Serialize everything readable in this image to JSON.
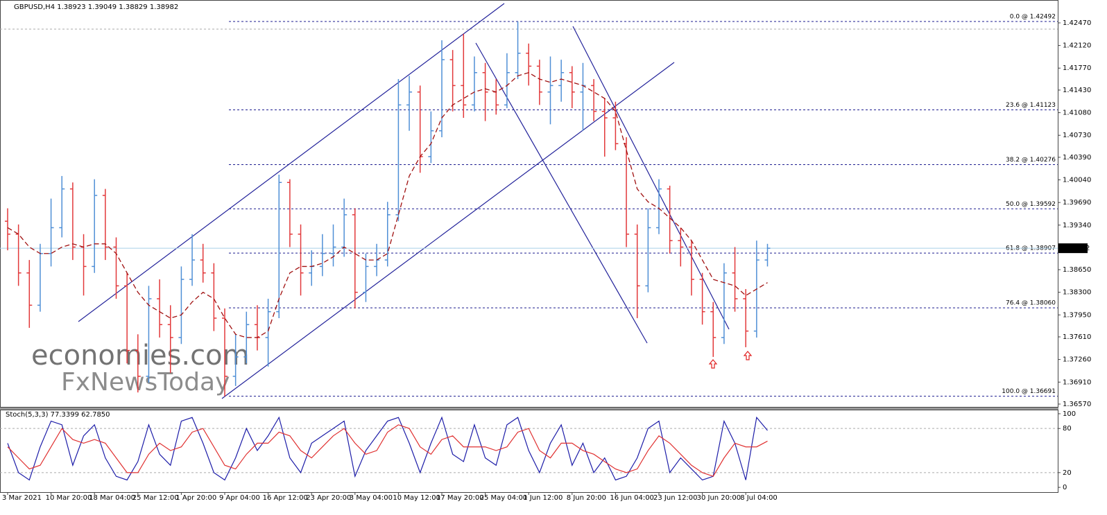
{
  "chart_data": [
    {
      "type": "ohlc",
      "title": "GBPUSD,H4  1.38923 1.39049 1.38829 1.38982",
      "categories": [
        "3 Mar 2021",
        null,
        null,
        null,
        "10 Mar 20:00",
        null,
        null,
        null,
        "18 Mar 04:00",
        null,
        null,
        null,
        "25 Mar 12:00",
        null,
        null,
        null,
        "1 Apr 20:00",
        null,
        null,
        null,
        "9 Apr 04:00",
        null,
        null,
        null,
        "16 Apr 12:00",
        null,
        null,
        null,
        "23 Apr 20:00",
        null,
        null,
        null,
        "3 May 04:00",
        null,
        null,
        null,
        "10 May 12:00",
        null,
        null,
        null,
        "17 May 20:00",
        null,
        null,
        null,
        "25 May 04:00",
        null,
        null,
        null,
        "1 Jun 12:00",
        null,
        null,
        null,
        "8 Jun 20:00",
        null,
        null,
        null,
        "16 Jun 04:00",
        null,
        null,
        null,
        "23 Jun 12:00",
        null,
        null,
        null,
        "30 Jun 20:00",
        null,
        null,
        null,
        "8 Jul 04:00",
        null,
        null
      ],
      "open": [
        1.394,
        1.392,
        1.386,
        1.381,
        1.389,
        1.393,
        1.399,
        1.39,
        1.387,
        1.398,
        1.39,
        1.384,
        1.374,
        1.37,
        1.382,
        1.378,
        1.376,
        1.385,
        1.388,
        1.386,
        1.379,
        1.37,
        1.373,
        1.378,
        1.376,
        1.38,
        1.4,
        1.392,
        1.386,
        1.387,
        1.389,
        1.39,
        1.395,
        1.383,
        1.387,
        1.388,
        1.395,
        1.412,
        1.414,
        1.404,
        1.408,
        1.419,
        1.415,
        1.412,
        1.417,
        1.414,
        1.412,
        1.417,
        1.42,
        1.418,
        1.414,
        1.415,
        1.417,
        1.414,
        1.415,
        1.411,
        1.41,
        1.406,
        1.392,
        1.384,
        1.393,
        1.399,
        1.391,
        1.39,
        1.385,
        1.38,
        1.376,
        1.386,
        1.382,
        1.377,
        1.388
      ],
      "high": [
        1.396,
        1.3935,
        1.388,
        1.3905,
        1.3975,
        1.401,
        1.4,
        1.392,
        1.4005,
        1.399,
        1.3915,
        1.386,
        1.3765,
        1.384,
        1.385,
        1.381,
        1.387,
        1.392,
        1.3905,
        1.3875,
        1.3805,
        1.3765,
        1.38,
        1.381,
        1.382,
        1.4012,
        1.4005,
        1.3935,
        1.3895,
        1.392,
        1.3935,
        1.3975,
        1.396,
        1.389,
        1.3905,
        1.397,
        1.416,
        1.4165,
        1.415,
        1.411,
        1.422,
        1.4205,
        1.423,
        1.4195,
        1.4185,
        1.416,
        1.42,
        1.4249,
        1.4215,
        1.419,
        1.4195,
        1.419,
        1.418,
        1.4185,
        1.416,
        1.413,
        1.4125,
        1.407,
        1.3935,
        1.396,
        1.4005,
        1.3995,
        1.393,
        1.391,
        1.386,
        1.3815,
        1.3875,
        1.39,
        1.3835,
        1.391,
        1.3905
      ],
      "low": [
        1.3895,
        1.384,
        1.3775,
        1.38,
        1.387,
        1.3915,
        1.388,
        1.3825,
        1.386,
        1.388,
        1.382,
        1.372,
        1.3675,
        1.369,
        1.376,
        1.3705,
        1.375,
        1.384,
        1.3845,
        1.377,
        1.3669,
        1.3685,
        1.372,
        1.374,
        1.3715,
        1.379,
        1.39,
        1.3825,
        1.384,
        1.3855,
        1.387,
        1.3885,
        1.3805,
        1.3815,
        1.3855,
        1.387,
        1.394,
        1.408,
        1.4015,
        1.403,
        1.407,
        1.411,
        1.41,
        1.411,
        1.4095,
        1.4105,
        1.4115,
        1.416,
        1.415,
        1.412,
        1.409,
        1.4125,
        1.4115,
        1.408,
        1.4095,
        1.404,
        1.405,
        1.39,
        1.379,
        1.383,
        1.392,
        1.389,
        1.387,
        1.3825,
        1.378,
        1.373,
        1.375,
        1.38,
        1.3745,
        1.376,
        1.387
      ],
      "close": [
        1.392,
        1.386,
        1.381,
        1.389,
        1.393,
        1.399,
        1.39,
        1.387,
        1.398,
        1.39,
        1.384,
        1.374,
        1.37,
        1.382,
        1.378,
        1.376,
        1.385,
        1.388,
        1.386,
        1.379,
        1.37,
        1.373,
        1.378,
        1.376,
        1.38,
        1.4,
        1.392,
        1.386,
        1.387,
        1.389,
        1.39,
        1.395,
        1.383,
        1.387,
        1.388,
        1.395,
        1.412,
        1.414,
        1.404,
        1.408,
        1.419,
        1.415,
        1.412,
        1.417,
        1.414,
        1.412,
        1.417,
        1.42,
        1.418,
        1.414,
        1.415,
        1.417,
        1.414,
        1.415,
        1.411,
        1.41,
        1.406,
        1.392,
        1.384,
        1.393,
        1.399,
        1.391,
        1.39,
        1.385,
        1.38,
        1.376,
        1.386,
        1.382,
        1.377,
        1.388,
        1.38982
      ],
      "up_color": "#4f8fd6",
      "down_color": "#e2383a",
      "ma": {
        "color": "#a01010",
        "values": [
          1.393,
          1.392,
          1.39,
          1.389,
          1.389,
          1.39,
          1.3905,
          1.39,
          1.3905,
          1.3905,
          1.389,
          1.386,
          1.383,
          1.381,
          1.38,
          1.379,
          1.3795,
          1.3815,
          1.383,
          1.382,
          1.379,
          1.3765,
          1.376,
          1.376,
          1.377,
          1.382,
          1.386,
          1.387,
          1.387,
          1.3875,
          1.3885,
          1.39,
          1.389,
          1.388,
          1.388,
          1.389,
          1.395,
          1.401,
          1.404,
          1.406,
          1.41,
          1.412,
          1.413,
          1.414,
          1.4145,
          1.414,
          1.415,
          1.4165,
          1.417,
          1.416,
          1.4155,
          1.416,
          1.4155,
          1.415,
          1.414,
          1.413,
          1.411,
          1.405,
          1.399,
          1.397,
          1.396,
          1.3945,
          1.393,
          1.391,
          1.388,
          1.385,
          1.3845,
          1.384,
          1.3825,
          1.3835,
          1.3845
        ]
      },
      "ylim": [
        1.36516,
        1.42824
      ],
      "yticks": [
        {
          "value": 1.4247,
          "label": "1.42470"
        },
        {
          "value": 1.4212,
          "label": "1.42120"
        },
        {
          "value": 1.4177,
          "label": "1.41770"
        },
        {
          "value": 1.4143,
          "label": "1.41430"
        },
        {
          "value": 1.4108,
          "label": "1.41080"
        },
        {
          "value": 1.4073,
          "label": "1.40730"
        },
        {
          "value": 1.4039,
          "label": "1.40390"
        },
        {
          "value": 1.4004,
          "label": "1.40040"
        },
        {
          "value": 1.3969,
          "label": "1.39690"
        },
        {
          "value": 1.3934,
          "label": "1.39340"
        },
        {
          "value": 1.3865,
          "label": "1.38650"
        },
        {
          "value": 1.383,
          "label": "1.38300"
        },
        {
          "value": 1.3795,
          "label": "1.37950"
        },
        {
          "value": 1.3761,
          "label": "1.37610"
        },
        {
          "value": 1.3726,
          "label": "1.37260"
        },
        {
          "value": 1.3691,
          "label": "1.36910"
        },
        {
          "value": 1.3657,
          "label": "1.36570"
        }
      ],
      "current_price": {
        "value": 1.38982,
        "label": "1.38982"
      },
      "fib_levels": [
        {
          "value": 1.42492,
          "label": "0.0 @ 1.42492"
        },
        {
          "value": 1.41123,
          "label": "23.6 @ 1.41123"
        },
        {
          "value": 1.40276,
          "label": "38.2 @ 1.40276"
        },
        {
          "value": 1.39592,
          "label": "50.0 @ 1.39592"
        },
        {
          "value": 1.38907,
          "label": "61.8 @ 1.38907"
        },
        {
          "value": 1.3806,
          "label": "76.4 @ 1.38060"
        },
        {
          "value": 1.36691,
          "label": "100.0 @ 1.36691"
        }
      ],
      "fib_color": "#1b1b8f",
      "watermark": [
        "economies.com",
        "FxNewsToday"
      ]
    },
    {
      "type": "line",
      "title": "Stoch(5,3,3) 77.3399 62.7850",
      "series": [
        {
          "color": "#1c1ca8",
          "values": [
            60,
            20,
            10,
            55,
            90,
            85,
            30,
            70,
            85,
            40,
            15,
            10,
            35,
            85,
            45,
            30,
            90,
            95,
            60,
            20,
            10,
            40,
            80,
            50,
            70,
            95,
            40,
            20,
            60,
            70,
            80,
            90,
            15,
            50,
            70,
            90,
            95,
            60,
            20,
            60,
            95,
            45,
            35,
            85,
            40,
            30,
            85,
            95,
            50,
            20,
            60,
            85,
            30,
            60,
            20,
            40,
            10,
            15,
            40,
            80,
            90,
            20,
            40,
            25,
            10,
            15,
            90,
            60,
            10,
            95,
            77.3399
          ]
        },
        {
          "color": "#e03030",
          "values": [
            55,
            40,
            25,
            30,
            55,
            80,
            65,
            60,
            65,
            60,
            40,
            20,
            20,
            45,
            60,
            50,
            55,
            75,
            80,
            55,
            30,
            25,
            45,
            60,
            60,
            75,
            70,
            50,
            40,
            55,
            70,
            80,
            60,
            45,
            50,
            75,
            85,
            80,
            55,
            45,
            65,
            70,
            55,
            55,
            55,
            50,
            55,
            75,
            80,
            50,
            40,
            60,
            60,
            50,
            45,
            35,
            25,
            20,
            25,
            50,
            70,
            60,
            45,
            30,
            20,
            15,
            40,
            60,
            55,
            55,
            62.785
          ]
        }
      ],
      "ylim": [
        -6.5,
        105.6
      ],
      "yticks": [
        0,
        20,
        80,
        100
      ],
      "levels": [
        20,
        80
      ]
    }
  ]
}
